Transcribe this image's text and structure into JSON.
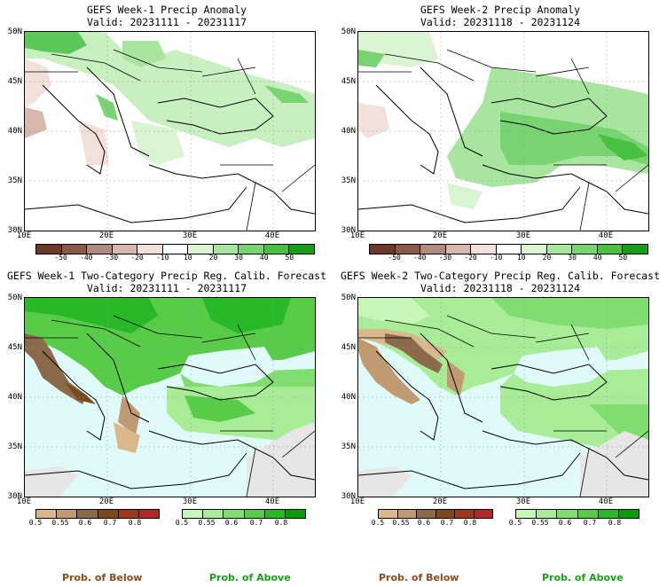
{
  "panels": [
    {
      "title_line1": "GEFS Week-1 Precip Anomaly",
      "title_line2": "Valid: 20231111 - 20231117"
    },
    {
      "title_line1": "GEFS Week-2 Precip Anomaly",
      "title_line2": "Valid: 20231118 - 20231124"
    },
    {
      "title_line1": "GEFS Week-1 Two-Category Precip Reg. Calib. Forecast",
      "title_line2": "Valid: 20231111 - 20231117"
    },
    {
      "title_line1": "GEFS Week-2 Two-Category Precip Reg. Calib. Forecast",
      "title_line2": "Valid: 20231118 - 20231124"
    }
  ],
  "lat_labels": [
    "50N",
    "45N",
    "40N",
    "35N",
    "30N"
  ],
  "lon_labels": [
    "10E",
    "20E",
    "30E",
    "40E"
  ],
  "anomaly_colorbar": {
    "ticks": [
      "-50",
      "-40",
      "-30",
      "-20",
      "-10",
      "10",
      "20",
      "30",
      "40",
      "50"
    ],
    "colors": [
      "#6b3a2a",
      "#8b5a47",
      "#b08a7a",
      "#d8b8ac",
      "#f2e0da",
      "#ffffff",
      "#d8f4d0",
      "#a8e6a0",
      "#78d470",
      "#48c040",
      "#1a9e1a"
    ]
  },
  "below_colorbar": {
    "ticks": [
      "0.5",
      "0.55",
      "0.6",
      "0.7",
      "0.8"
    ],
    "colors": [
      "#d9b88c",
      "#c09a70",
      "#8a6a4a",
      "#7a4a1a",
      "#9a3a18",
      "#b02828"
    ]
  },
  "above_colorbar": {
    "ticks": [
      "0.5",
      "0.55",
      "0.6",
      "0.7",
      "0.8"
    ],
    "colors": [
      "#c8f5b8",
      "#a8ec98",
      "#80de70",
      "#58cc48",
      "#28b828",
      "#0a9a0a"
    ]
  },
  "prob_labels": {
    "below": "Prob. of Below",
    "above": "Prob. of Above"
  },
  "colors": {
    "below_text": "#8a4a1a",
    "above_text": "#18a018",
    "sea": "#e0fafa",
    "nodata": "#e6e6e6"
  }
}
